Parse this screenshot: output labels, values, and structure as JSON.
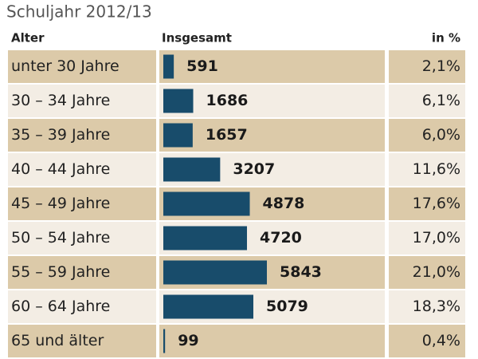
{
  "chart_data": {
    "type": "bar",
    "title": "Schuljahr 2012/13",
    "category_label": "Alter",
    "categories": [
      "unter 30 Jahre",
      "30 – 34 Jahre",
      "35 – 39 Jahre",
      "40 – 44 Jahre",
      "45 – 49 Jahre",
      "50 – 54 Jahre",
      "55 – 59 Jahre",
      "60 – 64 Jahre",
      "65 und älter"
    ],
    "series": [
      {
        "name": "Insgesamt",
        "color": "#184c6b",
        "values": [
          591,
          1686,
          1657,
          3207,
          4878,
          4720,
          5843,
          5079,
          99
        ]
      },
      {
        "name": "in %",
        "values": [
          2.1,
          6.1,
          6.0,
          11.6,
          17.6,
          17.0,
          21.0,
          18.3,
          0.4
        ],
        "value_labels": [
          "2,1%",
          "6,1%",
          "6,0%",
          "11,6%",
          "17,6%",
          "17,0%",
          "21,0%",
          "18,3%",
          "0,4%"
        ]
      }
    ]
  }
}
